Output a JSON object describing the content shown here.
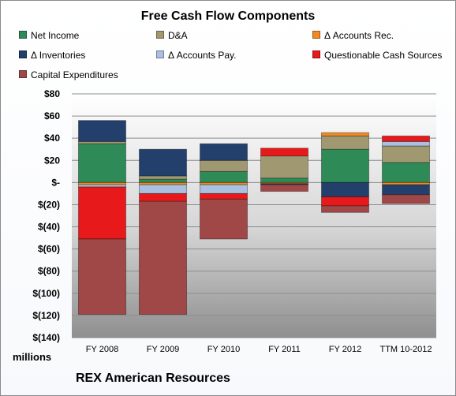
{
  "chart_data": {
    "type": "bar",
    "stacked": true,
    "title": "Free Cash Flow Components",
    "ylabel": "millions",
    "ylim": [
      -140,
      80
    ],
    "yticks": [
      80,
      60,
      40,
      20,
      0,
      -20,
      -40,
      -60,
      -80,
      -100,
      -120,
      -140
    ],
    "ytick_labels": [
      "$80",
      "$60",
      "$40",
      "$20",
      "$-",
      "$(20)",
      "$(40)",
      "$(60)",
      "$(80)",
      "$(100)",
      "$(120)",
      "$(140)"
    ],
    "categories": [
      "FY 2008",
      "FY 2009",
      "FY 2010",
      "FY 2011",
      "FY 2012",
      "TTM 10-2012"
    ],
    "grid": true,
    "legend_position": "top",
    "series": [
      {
        "name": "Net Income",
        "color": "#2e8b57",
        "values": [
          35,
          3,
          10,
          4,
          30,
          18
        ]
      },
      {
        "name": "D&A",
        "color": "#a09870",
        "values": [
          2,
          3,
          10,
          20,
          12,
          15
        ]
      },
      {
        "name": "Δ Accounts Rec.",
        "color": "#f08a24",
        "values": [
          -2,
          -2,
          -2,
          -1,
          3,
          -2
        ]
      },
      {
        "name": "Δ Inventories",
        "color": "#233f6b",
        "values": [
          19,
          24,
          15,
          -1,
          -13,
          -9
        ]
      },
      {
        "name": "Δ Accounts Pay.",
        "color": "#a9c0e0",
        "values": [
          -2,
          -8,
          -8,
          0,
          0,
          4
        ]
      },
      {
        "name": "Questionable Cash Sources",
        "color": "#e8191b",
        "values": [
          -47,
          -7,
          -5,
          7,
          -8,
          5
        ]
      },
      {
        "name": "Capital Expenditures",
        "color": "#a04848",
        "values": [
          -68,
          -102,
          -36,
          -6,
          -6,
          -8
        ]
      }
    ]
  },
  "company": "REX American Resources"
}
